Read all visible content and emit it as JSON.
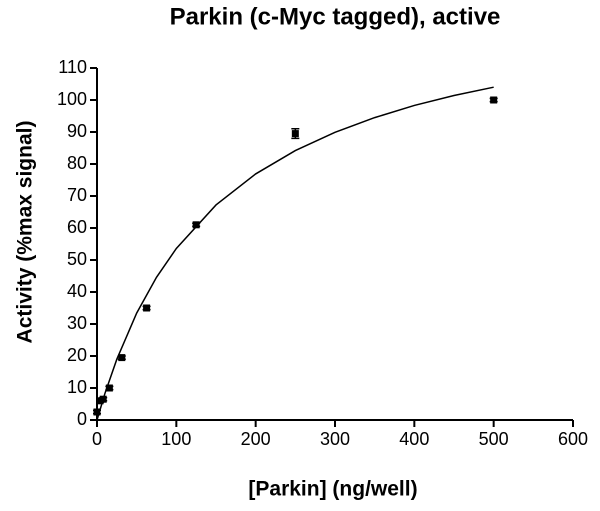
{
  "chart_data": {
    "type": "scatter",
    "title": "Parkin (c-Myc tagged), active",
    "x_label": "[Parkin] (ng/well)",
    "y_label": "Activity (%max signal)",
    "xlim": [
      0,
      600
    ],
    "xticks": [
      0,
      100,
      200,
      300,
      400,
      500,
      600
    ],
    "ylim": [
      0,
      110
    ],
    "yticks": [
      0,
      10,
      20,
      30,
      40,
      50,
      60,
      70,
      80,
      90,
      100,
      110
    ],
    "series": [
      {
        "style": "marker",
        "color": "#000000",
        "x": [
          0,
          3.9,
          7.8,
          15.6,
          31.25,
          62.5,
          125,
          250,
          500
        ],
        "values": [
          2.5,
          6,
          6.5,
          10,
          19.5,
          35,
          61,
          89.5,
          100
        ],
        "errors": [
          0.5,
          0.5,
          0.5,
          0.5,
          0.5,
          0.5,
          0.5,
          1.5,
          0.5
        ]
      },
      {
        "style": "line",
        "color": "#000000",
        "x": [
          0,
          10,
          25,
          50,
          75,
          100,
          150,
          200,
          250,
          300,
          350,
          400,
          450,
          500
        ],
        "values": [
          0,
          8.3,
          19,
          33.4,
          44.6,
          53.6,
          67.2,
          76.9,
          84.2,
          89.9,
          94.5,
          98.3,
          101.4,
          104
        ]
      }
    ]
  }
}
